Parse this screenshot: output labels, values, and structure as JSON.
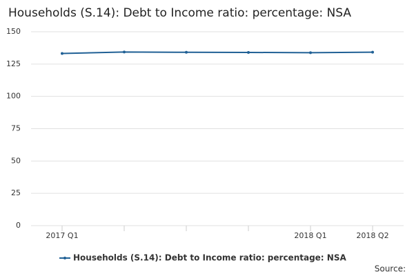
{
  "chart_data": {
    "type": "line",
    "title": "Households (S.14): Debt to Income ratio: percentage: NSA",
    "categories": [
      "2017 Q1",
      null,
      null,
      null,
      "2018 Q1",
      "2018 Q2"
    ],
    "series": [
      {
        "name": "Households (S.14): Debt to Income ratio: percentage: NSA",
        "color": "#206095",
        "values": [
          133.2,
          134.3,
          134.1,
          134.0,
          133.8,
          134.2
        ]
      }
    ],
    "ylim": [
      0,
      150
    ],
    "yticks": [
      0,
      25,
      50,
      75,
      100,
      125,
      150
    ],
    "grid": true,
    "legend": "bottom",
    "source": "Source:"
  }
}
